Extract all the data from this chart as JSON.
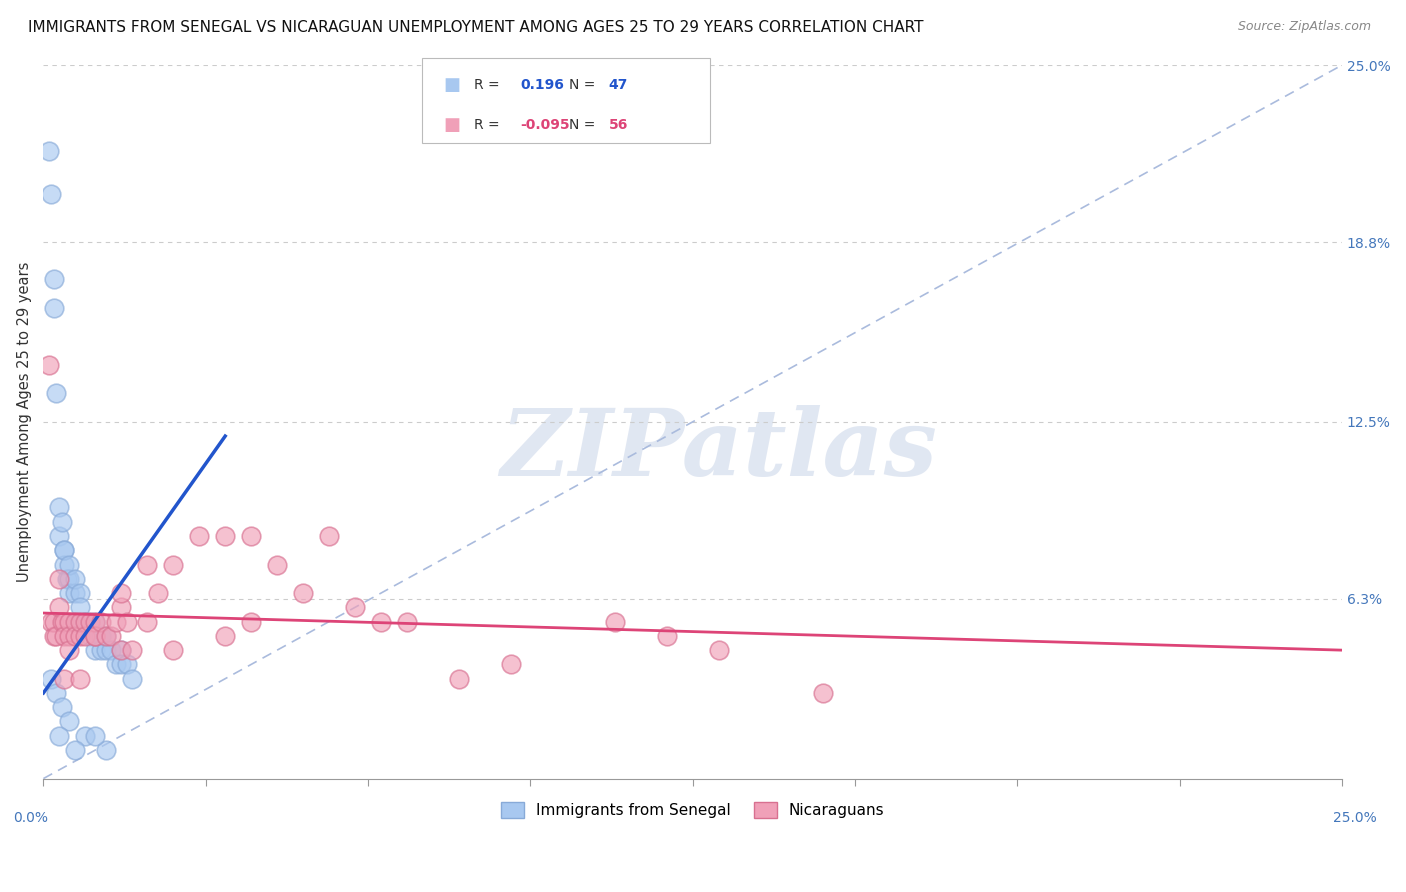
{
  "title": "IMMIGRANTS FROM SENEGAL VS NICARAGUAN UNEMPLOYMENT AMONG AGES 25 TO 29 YEARS CORRELATION CHART",
  "source": "Source: ZipAtlas.com",
  "ylabel": "Unemployment Among Ages 25 to 29 years",
  "xlim": [
    0.0,
    25.0
  ],
  "ylim": [
    0.0,
    25.0
  ],
  "right_yticklabels": [
    "6.3%",
    "12.5%",
    "18.8%",
    "25.0%"
  ],
  "right_ytick_vals": [
    6.3,
    12.5,
    18.8,
    25.0
  ],
  "legend_r1": "R =  0.196",
  "legend_n1": "N = 47",
  "legend_r2": "R = -0.095",
  "legend_n2": "N = 56",
  "blue_color": "#a8c8f0",
  "pink_color": "#f0a0b8",
  "blue_edge_color": "#88aad8",
  "pink_edge_color": "#d87090",
  "blue_line_color": "#2255cc",
  "pink_line_color": "#dd4477",
  "ref_line_color": "#aabbdd",
  "watermark": "ZIPatlas",
  "blue_x": [
    0.1,
    0.15,
    0.2,
    0.2,
    0.25,
    0.3,
    0.3,
    0.35,
    0.4,
    0.4,
    0.4,
    0.45,
    0.5,
    0.5,
    0.5,
    0.6,
    0.6,
    0.6,
    0.7,
    0.7,
    0.7,
    0.8,
    0.8,
    0.9,
    0.9,
    1.0,
    1.0,
    1.0,
    1.1,
    1.1,
    1.2,
    1.2,
    1.3,
    1.4,
    1.5,
    1.5,
    1.6,
    1.7,
    0.15,
    0.25,
    0.35,
    0.5,
    0.8,
    1.2,
    1.0,
    0.3,
    0.6
  ],
  "blue_y": [
    22.0,
    20.5,
    17.5,
    16.5,
    13.5,
    9.5,
    8.5,
    9.0,
    8.0,
    7.5,
    8.0,
    7.0,
    7.0,
    6.5,
    7.5,
    6.5,
    7.0,
    5.5,
    6.5,
    5.5,
    6.0,
    5.5,
    5.5,
    5.5,
    5.0,
    5.0,
    5.5,
    4.5,
    5.0,
    4.5,
    4.5,
    5.0,
    4.5,
    4.0,
    4.5,
    4.0,
    4.0,
    3.5,
    3.5,
    3.0,
    2.5,
    2.0,
    1.5,
    1.0,
    1.5,
    1.5,
    1.0
  ],
  "pink_x": [
    0.1,
    0.15,
    0.2,
    0.2,
    0.25,
    0.3,
    0.3,
    0.35,
    0.4,
    0.4,
    0.5,
    0.5,
    0.5,
    0.6,
    0.6,
    0.7,
    0.7,
    0.8,
    0.8,
    0.9,
    1.0,
    1.0,
    1.0,
    1.1,
    1.2,
    1.3,
    1.4,
    1.5,
    1.5,
    1.5,
    1.6,
    1.7,
    2.0,
    2.0,
    2.2,
    2.5,
    2.5,
    3.0,
    3.5,
    3.5,
    4.0,
    4.0,
    4.5,
    5.0,
    5.5,
    6.0,
    6.5,
    7.0,
    8.0,
    9.0,
    11.0,
    12.0,
    13.0,
    15.0,
    0.4,
    0.7
  ],
  "pink_y": [
    14.5,
    5.5,
    5.0,
    5.5,
    5.0,
    7.0,
    6.0,
    5.5,
    5.5,
    5.0,
    5.5,
    5.0,
    4.5,
    5.5,
    5.0,
    5.0,
    5.5,
    5.5,
    5.0,
    5.5,
    5.0,
    5.5,
    5.0,
    5.5,
    5.0,
    5.0,
    5.5,
    6.0,
    6.5,
    4.5,
    5.5,
    4.5,
    7.5,
    5.5,
    6.5,
    7.5,
    4.5,
    8.5,
    8.5,
    5.0,
    8.5,
    5.5,
    7.5,
    6.5,
    8.5,
    6.0,
    5.5,
    5.5,
    3.5,
    4.0,
    5.5,
    5.0,
    4.5,
    3.0,
    3.5,
    3.5
  ],
  "blue_trend": [
    0.0,
    3.5,
    12.0
  ],
  "pink_trend_x": [
    0.0,
    25.0
  ],
  "pink_trend_y_start": 5.8,
  "pink_trend_y_end": 4.5
}
